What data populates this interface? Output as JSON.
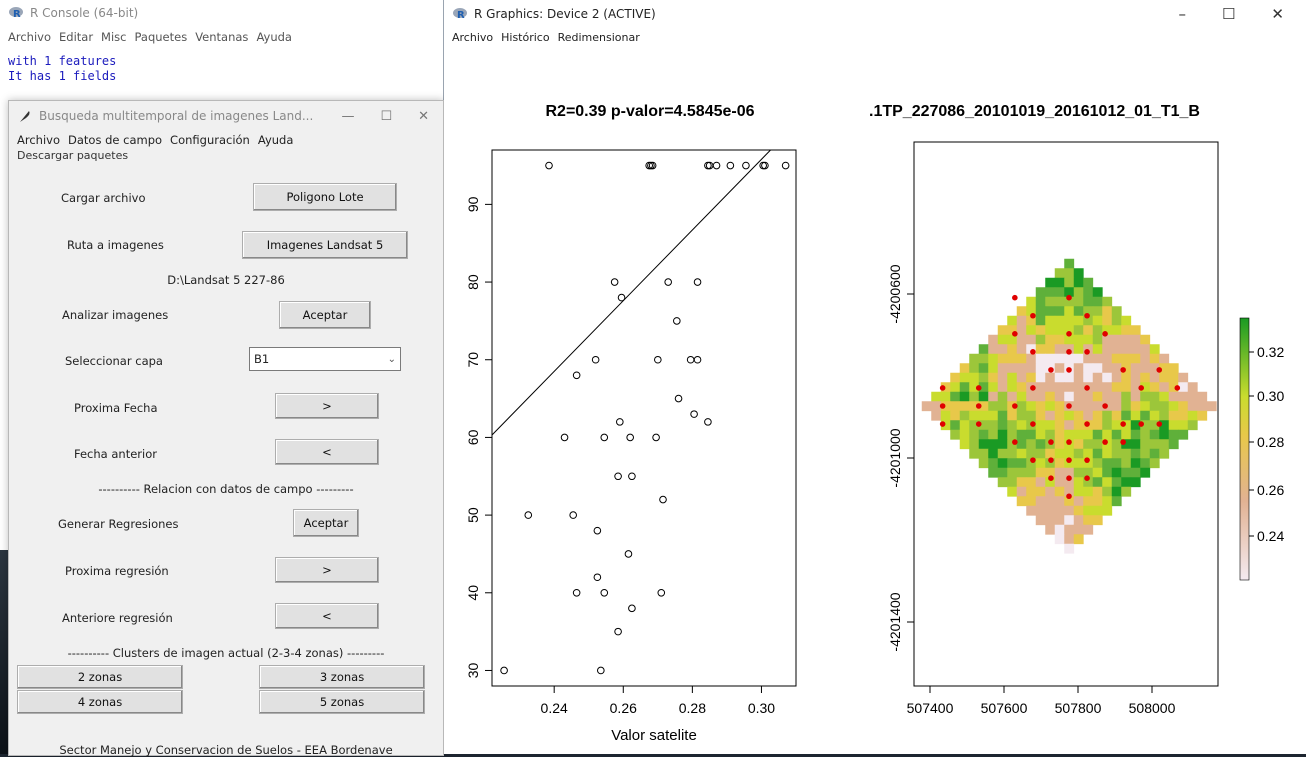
{
  "console": {
    "title": "R Console (64-bit)",
    "menu": [
      "Archivo",
      "Editar",
      "Misc",
      "Paquetes",
      "Ventanas",
      "Ayuda"
    ],
    "lines": [
      "with 1 features",
      "It has 1 fields"
    ]
  },
  "dialog": {
    "title": "Busqueda multitemporal de imagenes Land...",
    "menu": [
      "Archivo",
      "Datos de campo",
      "Configuración",
      "Ayuda"
    ],
    "submenu": "Descargar paquetes",
    "cargar_label": "Cargar archivo",
    "cargar_button": "Poligono Lote",
    "ruta_label": "Ruta a imagenes",
    "ruta_button": "Imagenes Landsat 5",
    "ruta_path": "D:\\Landsat 5 227-86",
    "analizar_label": "Analizar imagenes",
    "analizar_button": "Aceptar",
    "capa_label": "Seleccionar capa",
    "capa_value": "B1",
    "prox_fecha_label": "Proxima Fecha",
    "prox_fecha_button": ">",
    "fecha_ant_label": "Fecha anterior",
    "fecha_ant_button": "<",
    "relacion_header": "---------- Relacion con datos de campo ---------",
    "generar_label": "Generar Regresiones",
    "generar_button": "Aceptar",
    "prox_reg_label": "Proxima regresión",
    "prox_reg_button": ">",
    "ant_reg_label": "Anteriore regresión",
    "ant_reg_button": "<",
    "clusters_header": "---------- Clusters de imagen actual (2-3-4 zonas) ---------",
    "zona2": "2 zonas",
    "zona3": "3 zonas",
    "zona4": "4 zonas",
    "zona5": "5 zonas",
    "footer": "Sector Manejo y Conservacion de Suelos - EEA Bordenave"
  },
  "graphics": {
    "title": "R Graphics: Device 2 (ACTIVE)",
    "menu": [
      "Archivo",
      "Histórico",
      "Redimensionar"
    ],
    "window_controls": [
      "–",
      "☐",
      "✕"
    ]
  },
  "chart_data": [
    {
      "type": "scatter",
      "title": "R2=0.39 p-valor=4.5845e-06",
      "xlabel": "Valor satelite",
      "ylabel": "",
      "xlim": [
        0.222,
        0.31
      ],
      "ylim": [
        28,
        97
      ],
      "xticks": [
        "0.24",
        "0.26",
        "0.28",
        "0.30"
      ],
      "xtick_values": [
        0.24,
        0.26,
        0.28,
        0.3
      ],
      "yticks": [
        "30",
        "40",
        "50",
        "60",
        "70",
        "80",
        "90"
      ],
      "yticks_values": [
        30,
        40,
        50,
        60,
        70,
        80,
        90
      ],
      "fit_line": {
        "intercept": -40.7,
        "slope": 455
      },
      "points": [
        [
          0.2385,
          95
        ],
        [
          0.2675,
          95
        ],
        [
          0.268,
          95
        ],
        [
          0.2685,
          95
        ],
        [
          0.2845,
          95
        ],
        [
          0.285,
          95
        ],
        [
          0.287,
          95
        ],
        [
          0.291,
          95
        ],
        [
          0.2955,
          95
        ],
        [
          0.3005,
          95
        ],
        [
          0.301,
          95
        ],
        [
          0.307,
          95
        ],
        [
          0.2575,
          80
        ],
        [
          0.273,
          80
        ],
        [
          0.2815,
          80
        ],
        [
          0.2595,
          78
        ],
        [
          0.2755,
          75
        ],
        [
          0.252,
          70
        ],
        [
          0.27,
          70
        ],
        [
          0.2795,
          70
        ],
        [
          0.2815,
          70
        ],
        [
          0.2465,
          68
        ],
        [
          0.276,
          65
        ],
        [
          0.2805,
          63
        ],
        [
          0.259,
          62
        ],
        [
          0.2845,
          62
        ],
        [
          0.243,
          60
        ],
        [
          0.2545,
          60
        ],
        [
          0.262,
          60
        ],
        [
          0.2695,
          60
        ],
        [
          0.2585,
          55
        ],
        [
          0.2625,
          55
        ],
        [
          0.2715,
          52
        ],
        [
          0.2325,
          50
        ],
        [
          0.2455,
          50
        ],
        [
          0.2525,
          48
        ],
        [
          0.2615,
          45
        ],
        [
          0.2525,
          42
        ],
        [
          0.2465,
          40
        ],
        [
          0.2545,
          40
        ],
        [
          0.271,
          40
        ],
        [
          0.2625,
          38
        ],
        [
          0.2585,
          35
        ],
        [
          0.2255,
          30
        ],
        [
          0.2535,
          30
        ]
      ]
    },
    {
      "type": "heatmap",
      "title": ".1TP_227086_20101019_20161012_01_T1_B",
      "xticks": [
        "507400",
        "507600",
        "507800",
        "508000"
      ],
      "yticks": [
        "-4200600",
        "-4201000",
        "-4201400"
      ],
      "colorbar_ticks": [
        "0.32",
        "0.30",
        "0.28",
        "0.26",
        "0.24"
      ],
      "colorbar_range": [
        0.225,
        0.335
      ],
      "colors": {
        "low": "#f4eaf0",
        "mid1": "#e1b293",
        "mid2": "#e8c84a",
        "mid3": "#c9dc2e",
        "high": "#1a9a24"
      },
      "marker_color": "#e00000"
    }
  ]
}
